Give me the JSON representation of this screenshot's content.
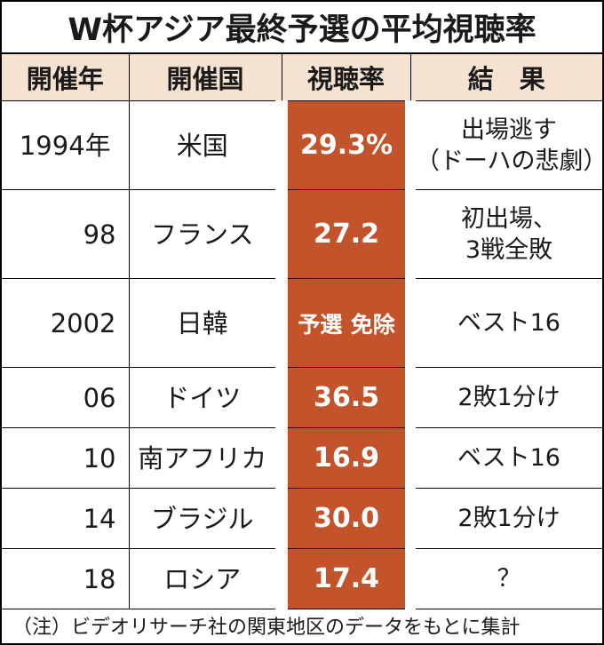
{
  "title": "W杯アジア最終予選の平均視聴率",
  "headers": [
    "開催年",
    "開催国",
    "視聴率",
    "結　果"
  ],
  "rows": [
    {
      "year": "1994年",
      "host": "米国",
      "rate": "29.3%",
      "result": [
        "出場逃す",
        "（ドーハの悲劇）"
      ]
    },
    {
      "year": "98",
      "host": "フランス",
      "rate": "27.2",
      "result": [
        "初出場、",
        "3戦全敗"
      ]
    },
    {
      "year": "2002",
      "host": "日韓",
      "rate": [
        "予選",
        "免除"
      ],
      "result": [
        "ベスト16"
      ]
    },
    {
      "year": "06",
      "host": "ドイツ",
      "rate": "36.5",
      "result": [
        "2敗1分け"
      ]
    },
    {
      "year": "10",
      "host": "南アフリカ",
      "rate": "16.9",
      "result": [
        "ベスト16"
      ]
    },
    {
      "year": "14",
      "host": "ブラジル",
      "rate": "30.0",
      "result": [
        "2敗1分け"
      ]
    },
    {
      "year": "18",
      "host": "ロシア",
      "rate": "17.4",
      "result": [
        "？"
      ]
    }
  ],
  "note": "（注）ビデオリサーチ社の関東地区のデータをもとに集計",
  "colors": {
    "header_bg": "#f6e2d1",
    "rate_bg": "#c2532b",
    "rate_text": "#ffffff"
  }
}
